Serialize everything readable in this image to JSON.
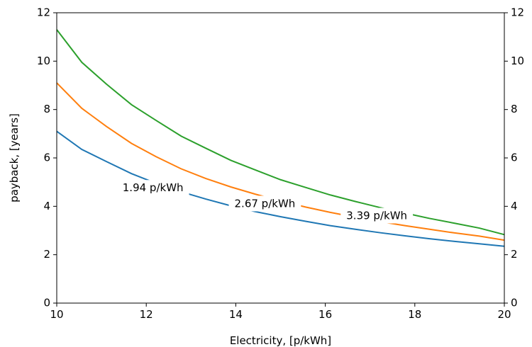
{
  "chart_data": {
    "type": "line",
    "title": "",
    "xlabel": "Electricity, [p/kWh]",
    "ylabel": "payback, [years]",
    "xlim": [
      10,
      20
    ],
    "ylim": [
      0,
      12
    ],
    "xticks": [
      10,
      12,
      14,
      16,
      18,
      20
    ],
    "yticks": [
      0,
      2,
      4,
      6,
      8,
      10,
      12
    ],
    "yticks_right": [
      0,
      2,
      4,
      6,
      8,
      10,
      12
    ],
    "grid": false,
    "x": [
      10,
      10.56,
      11.11,
      11.67,
      12.22,
      12.78,
      13.33,
      13.89,
      14.44,
      15.0,
      15.56,
      16.11,
      16.67,
      17.22,
      17.78,
      18.33,
      18.89,
      19.44,
      20
    ],
    "series": [
      {
        "label": "1.94 p/kWh",
        "color": "#1f77b4",
        "values": [
          7.1,
          6.35,
          5.85,
          5.35,
          4.95,
          4.6,
          4.3,
          4.02,
          3.78,
          3.57,
          3.38,
          3.2,
          3.05,
          2.91,
          2.78,
          2.66,
          2.55,
          2.45,
          2.35
        ]
      },
      {
        "label": "2.67 p/kWh",
        "color": "#ff7f0e",
        "values": [
          9.1,
          8.05,
          7.3,
          6.6,
          6.05,
          5.55,
          5.15,
          4.8,
          4.5,
          4.22,
          3.97,
          3.75,
          3.55,
          3.37,
          3.2,
          3.05,
          2.9,
          2.77,
          2.6
        ]
      },
      {
        "label": "3.39 p/kWh",
        "color": "#2ca02c",
        "values": [
          11.3,
          9.95,
          9.05,
          8.2,
          7.55,
          6.9,
          6.4,
          5.9,
          5.5,
          5.1,
          4.78,
          4.47,
          4.2,
          3.95,
          3.72,
          3.5,
          3.3,
          3.1,
          2.83
        ]
      }
    ],
    "inline_labels": [
      {
        "text": "1.94 p/kWh",
        "x": 12.15,
        "y": 4.75
      },
      {
        "text": "2.67 p/kWh",
        "x": 14.65,
        "y": 4.1
      },
      {
        "text": "3.39 p/kWh",
        "x": 17.15,
        "y": 3.6
      }
    ]
  }
}
